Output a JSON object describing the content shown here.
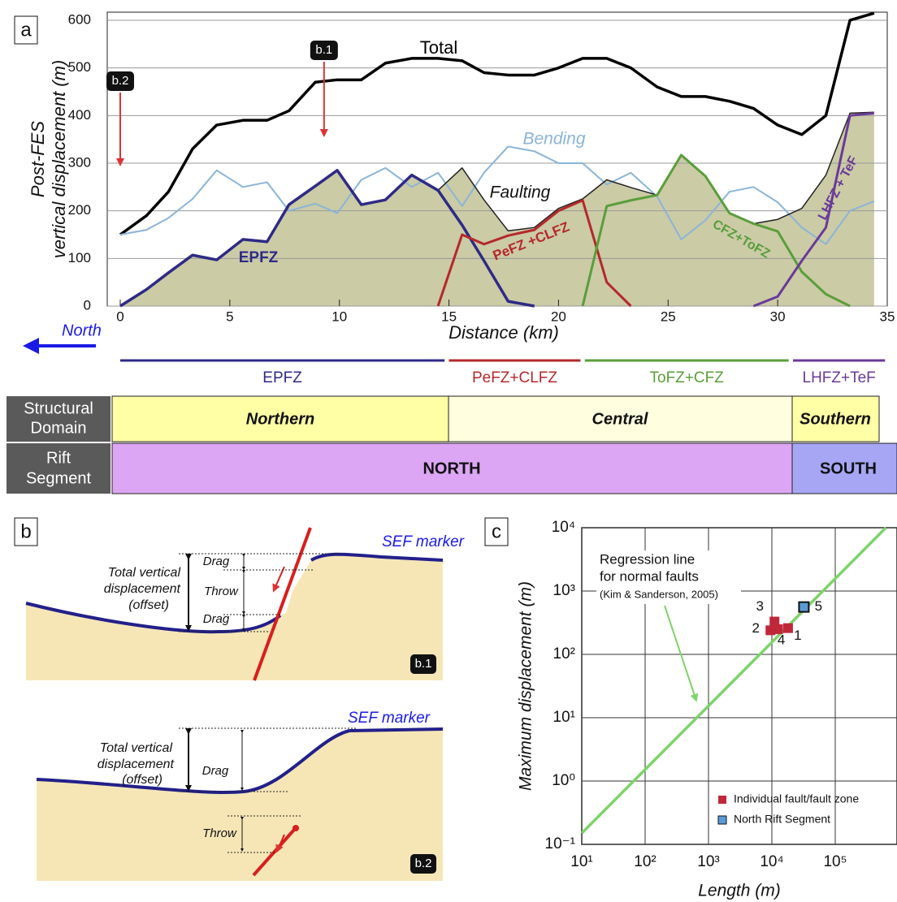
{
  "chart_data": [
    {
      "type": "line",
      "panel": "a",
      "x_label": "Distance (km)",
      "y_label": [
        "Post-FES",
        "vertical displacement (m)"
      ],
      "x": [
        0,
        1.2,
        2.2,
        3.3,
        4.4,
        5.6,
        6.7,
        7.7,
        8.9,
        9.9,
        11,
        12.1,
        13.3,
        14.5,
        15.6,
        16.6,
        17.7,
        18.9,
        20,
        21.1,
        22.2,
        23.3,
        24.5,
        25.6,
        26.7,
        27.8,
        28.9,
        30,
        31.1,
        32.2,
        33.3,
        34.4
      ],
      "series": [
        {
          "name": "Total",
          "color": "#000000",
          "values": [
            150,
            190,
            240,
            330,
            380,
            390,
            390,
            410,
            470,
            475,
            475,
            510,
            520,
            520,
            515,
            490,
            485,
            485,
            500,
            520,
            520,
            500,
            460,
            440,
            440,
            430,
            415,
            380,
            360,
            400,
            600,
            615
          ]
        },
        {
          "name": "Bending",
          "color": "#8ab4d8",
          "values": [
            150,
            160,
            185,
            225,
            285,
            250,
            260,
            200,
            215,
            195,
            265,
            290,
            250,
            280,
            210,
            280,
            335,
            325,
            300,
            300,
            255,
            280,
            230,
            140,
            180,
            240,
            250,
            218,
            165,
            130,
            200,
            220
          ]
        },
        {
          "name": "Faulting",
          "color": "#222222",
          "fill": "#cbcba6",
          "values": [
            0,
            35,
            70,
            107,
            97,
            140,
            135,
            213,
            252,
            285,
            213,
            223,
            275,
            243,
            290,
            223,
            158,
            165,
            205,
            225,
            265,
            249,
            233,
            317,
            273,
            195,
            173,
            182,
            205,
            275,
            405,
            407
          ]
        },
        {
          "name": "EPFZ",
          "color": "#2e2a86",
          "values": [
            0,
            35,
            70,
            107,
            97,
            140,
            135,
            213,
            252,
            285,
            213,
            223,
            275,
            243,
            170,
            95,
            10,
            0,
            null,
            null,
            null,
            null,
            null,
            null,
            null,
            null,
            null,
            null,
            null,
            null,
            null,
            null
          ]
        },
        {
          "name": "PeFZ +CLFZ",
          "color": "#b5282b",
          "values": [
            null,
            null,
            null,
            null,
            null,
            null,
            null,
            null,
            null,
            null,
            null,
            null,
            null,
            0,
            150,
            130,
            148,
            160,
            200,
            222,
            50,
            0,
            null,
            null,
            null,
            null,
            null,
            null,
            null,
            null,
            null,
            null
          ]
        },
        {
          "name": "CFZ+ToFZ",
          "color": "#5a9e3a",
          "values": [
            null,
            null,
            null,
            null,
            null,
            null,
            null,
            null,
            null,
            null,
            null,
            null,
            null,
            null,
            null,
            null,
            null,
            null,
            null,
            0,
            210,
            222,
            233,
            317,
            273,
            195,
            173,
            157,
            72,
            25,
            0,
            null
          ]
        },
        {
          "name": "LHFZ + TeF",
          "color": "#6a3a98",
          "values": [
            null,
            null,
            null,
            null,
            null,
            null,
            null,
            null,
            null,
            null,
            null,
            null,
            null,
            null,
            null,
            null,
            null,
            null,
            null,
            null,
            null,
            null,
            null,
            null,
            null,
            null,
            0,
            20,
            95,
            165,
            400,
            405
          ]
        }
      ],
      "xlim": [
        0,
        35
      ],
      "ylim": [
        0,
        617
      ],
      "xticks": [
        0,
        5,
        10,
        15,
        20,
        25,
        30,
        35
      ],
      "yticks": [
        0,
        100,
        200,
        300,
        400,
        500,
        600
      ],
      "grid": true,
      "markers": [
        {
          "text": "b.2",
          "x": 0
        },
        {
          "text": "b.1",
          "x": 9.3
        }
      ],
      "zones": [
        {
          "label": "EPFZ",
          "start": 0,
          "end": 14.8,
          "color": "#2e2a86"
        },
        {
          "label": "PeFZ+CLFZ",
          "start": 15,
          "end": 21,
          "color": "#b5282b"
        },
        {
          "label": "ToFZ+CFZ",
          "start": 21.2,
          "end": 30.5,
          "color": "#5a9e3a"
        },
        {
          "label": "LHFZ+TeF",
          "start": 30.7,
          "end": 34.9,
          "color": "#6a3a98"
        }
      ]
    },
    {
      "type": "scatter",
      "panel": "c",
      "x_label": "Length (m)",
      "y_label": "Maximum displacement (m)",
      "xlog": true,
      "ylog": true,
      "xlim": [
        10,
        1000000
      ],
      "ylim": [
        0.1,
        10000
      ],
      "xticks": [
        {
          "value": 10,
          "label": "10¹"
        },
        {
          "value": 100,
          "label": "10²"
        },
        {
          "value": 1000,
          "label": "10³"
        },
        {
          "value": 10000,
          "label": "10⁴"
        },
        {
          "value": 100000,
          "label": "10⁵"
        }
      ],
      "yticks": [
        {
          "value": 0.1,
          "label": "10⁻¹"
        },
        {
          "value": 1,
          "label": "10⁰"
        },
        {
          "value": 10,
          "label": "10¹"
        },
        {
          "value": 100,
          "label": "10²"
        },
        {
          "value": 1000,
          "label": "10³"
        },
        {
          "value": 10000,
          "label": "10⁴"
        }
      ],
      "grid": true,
      "series": [
        {
          "name": "Individual fault/fault zone",
          "color": "#c0283a",
          "x": [
            18000,
            9500,
            11000,
            12500
          ],
          "values": [
            260,
            240,
            330,
            250
          ],
          "labels": [
            "1",
            "2",
            "3",
            "4"
          ]
        },
        {
          "name": "North Rift Segment",
          "color": "#5b9bd5",
          "x": [
            32000
          ],
          "values": [
            560
          ],
          "labels": [
            "5"
          ]
        }
      ],
      "regression": {
        "color": "#7ed36a",
        "x": [
          10,
          630000
        ],
        "values": [
          0.15,
          10000
        ]
      },
      "annotation": [
        "Regression line",
        "for normal faults",
        "(Kim & Sanderson, 2005)"
      ]
    }
  ],
  "panel_labels": [
    "a",
    "b",
    "c"
  ],
  "north": "North",
  "domains": {
    "row_titles": [
      [
        "Structural",
        "Domain"
      ],
      [
        "Rift",
        "Segment"
      ]
    ],
    "structural": [
      "Northern",
      "Central",
      "Southern"
    ],
    "rift": [
      "NORTH",
      "SOUTH"
    ]
  },
  "diagram_b": {
    "b1": {
      "marker": "SEF marker",
      "total": [
        "Total vertical",
        "displacement",
        "(offset)"
      ],
      "drag_top": "Drag",
      "throw": "Throw",
      "drag_bottom": "Drag",
      "tag": "b.1"
    },
    "b2": {
      "marker": "SEF marker",
      "total": [
        "Total vertical",
        "displacement",
        "(offset)"
      ],
      "drag": "Drag",
      "throw": "Throw",
      "tag": "b.2"
    }
  }
}
